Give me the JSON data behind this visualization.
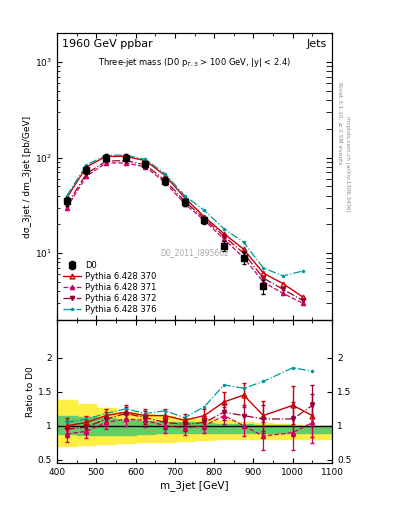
{
  "title_left": "1960 GeV ppbar",
  "title_right": "Jets",
  "annotation": "Three-jet mass (D0 p$_{T,3}$ > 100 GeV, |y| < 2.4)",
  "watermark": "D0_2011_I895662",
  "right_label1": "Rivet 3.1.10, ≥ 2.5M events",
  "right_label2": "mcplots.cern.ch [arXiv:1306.3436]",
  "xlabel": "m_3jet [GeV]",
  "ylabel": "dσ_3jet / dm_3jet [pb/GeV]",
  "ylabel_ratio": "Ratio to D0",
  "x_data": [
    425,
    475,
    525,
    575,
    625,
    675,
    725,
    775,
    825,
    875,
    925,
    975,
    1025
  ],
  "d0_y": [
    35,
    75,
    100,
    100,
    85,
    57,
    34,
    22,
    12,
    9,
    4.5,
    null,
    null
  ],
  "d0_yerr": [
    4,
    7,
    8,
    8,
    7,
    5,
    3,
    2,
    1.5,
    1.2,
    0.8,
    null,
    null
  ],
  "py370_y": [
    38,
    80,
    103,
    103,
    93,
    65,
    38,
    24,
    16,
    11,
    6.2,
    4.8,
    3.5
  ],
  "py371_y": [
    30,
    64,
    88,
    88,
    80,
    55,
    33,
    22,
    14,
    9,
    5.0,
    3.8,
    3.0
  ],
  "py372_y": [
    32,
    68,
    92,
    93,
    84,
    58,
    35,
    23,
    15,
    10,
    5.5,
    4.2,
    3.2
  ],
  "py376_y": [
    40,
    84,
    106,
    106,
    96,
    68,
    40,
    28,
    18,
    13,
    7.0,
    5.8,
    6.5
  ],
  "ratio_x": [
    425,
    475,
    525,
    575,
    625,
    675,
    725,
    775,
    825,
    875,
    925,
    1000,
    1050
  ],
  "ratio_py370": [
    1.0,
    1.05,
    1.15,
    1.2,
    1.15,
    1.15,
    1.08,
    1.15,
    1.35,
    1.45,
    1.15,
    1.3,
    1.15
  ],
  "ratio_py371": [
    0.88,
    0.92,
    1.05,
    1.1,
    1.08,
    1.0,
    0.97,
    1.0,
    1.15,
    1.0,
    0.85,
    0.9,
    1.05
  ],
  "ratio_py372": [
    0.95,
    0.98,
    1.1,
    1.18,
    1.12,
    1.05,
    1.02,
    1.05,
    1.2,
    1.15,
    1.1,
    1.1,
    1.3
  ],
  "ratio_py376": [
    1.05,
    1.1,
    1.18,
    1.25,
    1.18,
    1.22,
    1.12,
    1.28,
    1.6,
    1.55,
    1.65,
    1.85,
    1.8
  ],
  "ratio_py370_err": [
    0.12,
    0.1,
    0.1,
    0.1,
    0.1,
    0.1,
    0.1,
    0.1,
    0.15,
    0.18,
    0.22,
    0.28,
    0.32
  ],
  "ratio_py371_err": [
    0.12,
    0.1,
    0.1,
    0.1,
    0.1,
    0.1,
    0.1,
    0.1,
    0.12,
    0.15,
    0.2,
    0.25,
    0.3
  ],
  "ratio_py372_err": [
    0.12,
    0.1,
    0.1,
    0.1,
    0.1,
    0.1,
    0.1,
    0.1,
    0.12,
    0.15,
    0.2,
    0.25,
    0.3
  ],
  "band_x": [
    400,
    450,
    500,
    550,
    600,
    650,
    700,
    750,
    800,
    850,
    900,
    950,
    1000,
    1050,
    1100
  ],
  "green_upper": [
    1.15,
    1.13,
    1.11,
    1.09,
    1.07,
    1.06,
    1.05,
    1.04,
    1.03,
    1.02,
    1.01,
    1.01,
    1.0,
    1.0,
    1.0
  ],
  "green_lower": [
    0.88,
    0.87,
    0.87,
    0.87,
    0.88,
    0.89,
    0.9,
    0.9,
    0.9,
    0.9,
    0.9,
    0.9,
    0.9,
    0.9,
    0.9
  ],
  "yellow_upper": [
    1.38,
    1.32,
    1.26,
    1.2,
    1.17,
    1.14,
    1.12,
    1.1,
    1.08,
    1.06,
    1.04,
    1.02,
    1.01,
    1.0,
    1.0
  ],
  "yellow_lower": [
    0.7,
    0.72,
    0.73,
    0.75,
    0.76,
    0.77,
    0.78,
    0.79,
    0.8,
    0.8,
    0.8,
    0.8,
    0.8,
    0.8,
    0.8
  ],
  "color_d0": "#000000",
  "color_py370": "#cc0000",
  "color_py371": "#cc0066",
  "color_py372": "#990033",
  "color_py376": "#009999",
  "green_color": "#66cc66",
  "yellow_color": "#ffee44",
  "xlim": [
    400,
    1100
  ],
  "ylim_main": [
    2,
    2000
  ],
  "ylim_ratio": [
    0.45,
    2.55
  ]
}
